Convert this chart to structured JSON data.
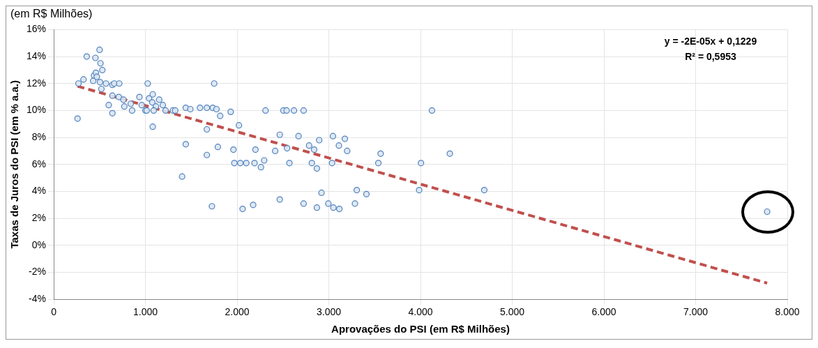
{
  "chart_data": {
    "type": "scatter",
    "title": "(em R$ Milhões)",
    "xlabel": "Aprovações do PSI (em R$ Milhões)",
    "ylabel": "Taxas de Juros do PSI (em % a.a.)",
    "annotations": [
      "y = -2E-05x + 0,1229",
      "R² = 0,5953"
    ],
    "xlim": [
      0,
      8000
    ],
    "xticks": [
      0,
      {
        "value": 1000,
        "label": "1.000"
      },
      {
        "value": 2000,
        "label": "2.000"
      },
      {
        "value": 3000,
        "label": "3.000"
      },
      {
        "value": 4000,
        "label": "4.000"
      },
      {
        "value": 5000,
        "label": "5.000"
      },
      {
        "value": 6000,
        "label": "6.000"
      },
      {
        "value": 7000,
        "label": "7.000"
      },
      {
        "value": 8000,
        "label": "8.000"
      }
    ],
    "ylim": [
      -4,
      16
    ],
    "yticks": [
      {
        "value": -4,
        "label": "-4%"
      },
      {
        "value": -2,
        "label": "-2%"
      },
      {
        "value": 0,
        "label": "0%"
      },
      {
        "value": 2,
        "label": "2%"
      },
      {
        "value": 4,
        "label": "4%"
      },
      {
        "value": 6,
        "label": "6%"
      },
      {
        "value": 8,
        "label": "8%"
      },
      {
        "value": 10,
        "label": "10%"
      },
      {
        "value": 12,
        "label": "12%"
      },
      {
        "value": 14,
        "label": "14%"
      },
      {
        "value": 16,
        "label": "16%"
      }
    ],
    "grid": true,
    "legend": false,
    "marker": "circle",
    "series": [
      {
        "color": "#4f81bd",
        "x": [
          260,
          270,
          325,
          360,
          455,
          500,
          430,
          440,
          460,
          470,
          510,
          530,
          505,
          520,
          570,
          640,
          660,
          715,
          600,
          640,
          710,
          640,
          760,
          770,
          855,
          840,
          935,
          960,
          1000,
          1025,
          1040,
          1080,
          1075,
          1080,
          1115,
          1150,
          1190,
          1220,
          1300,
          1325,
          1015,
          1090,
          1440,
          1490,
          1440,
          1400,
          1595,
          1670,
          1670,
          1670,
          1735,
          1750,
          1775,
          1790,
          1815,
          1725,
          1930,
          2020,
          1960,
          1970,
          2035,
          2100,
          2190,
          2260,
          2295,
          2200,
          2310,
          2415,
          2465,
          2505,
          2540,
          2620,
          2725,
          2570,
          2545,
          2670,
          2785,
          2840,
          2815,
          2870,
          2895,
          3045,
          3110,
          3175,
          3200,
          3035,
          3565,
          3540,
          4125,
          4320,
          4005,
          3985,
          4695,
          2060,
          2175,
          2465,
          2725,
          2870,
          2920,
          2995,
          3050,
          3115,
          3285,
          3305,
          3410,
          7780
        ],
        "values": [
          9.4,
          12.0,
          12.3,
          14.0,
          13.9,
          14.5,
          12.2,
          12.6,
          12.8,
          12.5,
          13.5,
          13.0,
          12.1,
          11.6,
          12.0,
          11.9,
          12.0,
          12.0,
          10.4,
          11.1,
          11.0,
          9.8,
          10.8,
          10.3,
          10.0,
          10.5,
          11.0,
          10.4,
          10.0,
          12.0,
          10.9,
          11.2,
          10.6,
          8.8,
          10.3,
          10.8,
          10.4,
          10.0,
          10.0,
          10.0,
          10.0,
          10.0,
          10.2,
          10.1,
          7.5,
          5.1,
          10.2,
          10.2,
          8.6,
          6.7,
          10.2,
          12.0,
          10.1,
          7.3,
          9.6,
          2.9,
          9.9,
          8.9,
          7.1,
          6.1,
          6.1,
          6.1,
          6.1,
          5.8,
          6.3,
          7.1,
          10.0,
          7.0,
          8.2,
          10.0,
          10.0,
          10.0,
          10.0,
          6.1,
          7.2,
          8.1,
          7.4,
          7.1,
          6.1,
          5.7,
          7.8,
          8.1,
          7.4,
          7.9,
          7.0,
          6.1,
          6.8,
          6.1,
          10.0,
          6.8,
          6.1,
          4.1,
          4.1,
          2.7,
          3.0,
          3.4,
          3.1,
          2.8,
          3.9,
          3.1,
          2.8,
          2.7,
          3.1,
          4.1,
          3.8,
          2.5
        ]
      },
      {
        "type": "line",
        "color": "#c0504d",
        "line_style": "dashed",
        "marker": "none",
        "x": [
          260,
          7780
        ],
        "values": [
          11.8,
          -2.8
        ]
      }
    ]
  }
}
